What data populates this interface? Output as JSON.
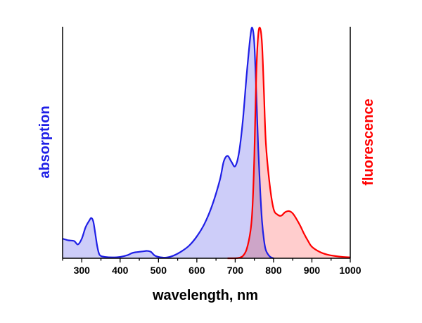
{
  "chart_data": {
    "type": "area",
    "xlabel": "wavelength, nm",
    "ylabel_left": "absorption",
    "ylabel_right": "fluorescence",
    "xlim": [
      250,
      1000
    ],
    "ylim": [
      0,
      1
    ],
    "xticks": [
      300,
      400,
      500,
      600,
      700,
      800,
      900,
      1000
    ],
    "y_tick_labels": false,
    "grid": false,
    "legend": "none",
    "colors": {
      "absorption_line": "#1f1fe6",
      "absorption_fill": "#c8c8f8",
      "fluorescence_line": "#ff0000",
      "fluorescence_fill": "#ffc8c8"
    },
    "series": [
      {
        "axis": "left",
        "x": [
          250,
          265,
          280,
          290,
          300,
          310,
          320,
          325,
          330,
          335,
          340,
          345,
          350,
          360,
          380,
          400,
          420,
          430,
          440,
          450,
          460,
          470,
          480,
          490,
          500,
          520,
          540,
          560,
          580,
          600,
          620,
          640,
          660,
          670,
          680,
          690,
          700,
          710,
          720,
          730,
          740,
          745,
          750,
          755,
          760,
          765,
          770,
          775,
          780,
          790,
          800
        ],
        "values": [
          0.085,
          0.078,
          0.075,
          0.06,
          0.085,
          0.135,
          0.165,
          0.175,
          0.16,
          0.11,
          0.055,
          0.02,
          0.01,
          0.006,
          0.004,
          0.006,
          0.014,
          0.022,
          0.026,
          0.028,
          0.03,
          0.032,
          0.028,
          0.012,
          0.006,
          0.003,
          0.012,
          0.03,
          0.055,
          0.095,
          0.15,
          0.23,
          0.34,
          0.42,
          0.445,
          0.42,
          0.4,
          0.46,
          0.6,
          0.8,
          0.97,
          1.0,
          0.93,
          0.72,
          0.48,
          0.3,
          0.16,
          0.08,
          0.035,
          0.008,
          0.0
        ]
      },
      {
        "axis": "right",
        "x": [
          680,
          700,
          710,
          720,
          730,
          740,
          745,
          750,
          755,
          760,
          765,
          770,
          775,
          780,
          790,
          800,
          810,
          820,
          830,
          840,
          850,
          860,
          870,
          880,
          890,
          900,
          920,
          940,
          960,
          980,
          1000
        ],
        "values": [
          0.0,
          0.0,
          0.002,
          0.01,
          0.04,
          0.12,
          0.22,
          0.45,
          0.8,
          0.97,
          1.0,
          0.93,
          0.72,
          0.5,
          0.32,
          0.215,
          0.19,
          0.185,
          0.2,
          0.205,
          0.195,
          0.17,
          0.14,
          0.105,
          0.075,
          0.05,
          0.028,
          0.016,
          0.01,
          0.006,
          0.004
        ]
      }
    ]
  }
}
